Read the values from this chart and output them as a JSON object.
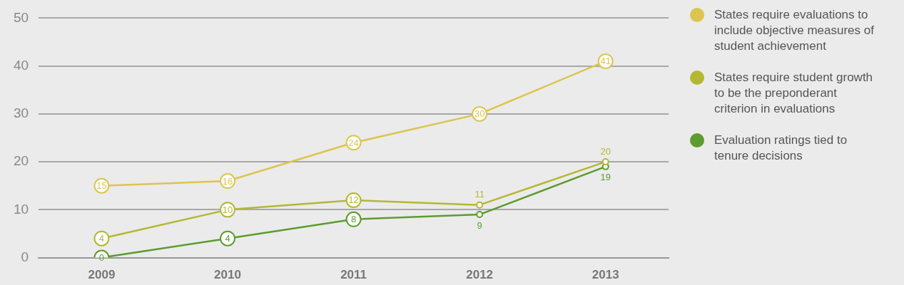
{
  "chart_data": {
    "type": "line",
    "categories": [
      "2009",
      "2010",
      "2011",
      "2012",
      "2013"
    ],
    "series": [
      {
        "name": "States require evaluations to include objective measures of student achievement",
        "color": "#dcc54e",
        "values": [
          15,
          16,
          24,
          30,
          41
        ]
      },
      {
        "name": "States require student growth to be the preponderant criterion in evaluations",
        "color": "#b3b833",
        "values": [
          4,
          10,
          12,
          11,
          20
        ]
      },
      {
        "name": "Evaluation ratings tied to tenure decisions",
        "color": "#5c9c30",
        "values": [
          0,
          4,
          8,
          9,
          19
        ]
      }
    ],
    "ylim": [
      0,
      50
    ],
    "yticks": [
      0,
      10,
      20,
      30,
      40,
      50
    ],
    "grid": "y",
    "legend": "right",
    "marker": "circle",
    "line_style": "solid",
    "data_labels": true
  }
}
